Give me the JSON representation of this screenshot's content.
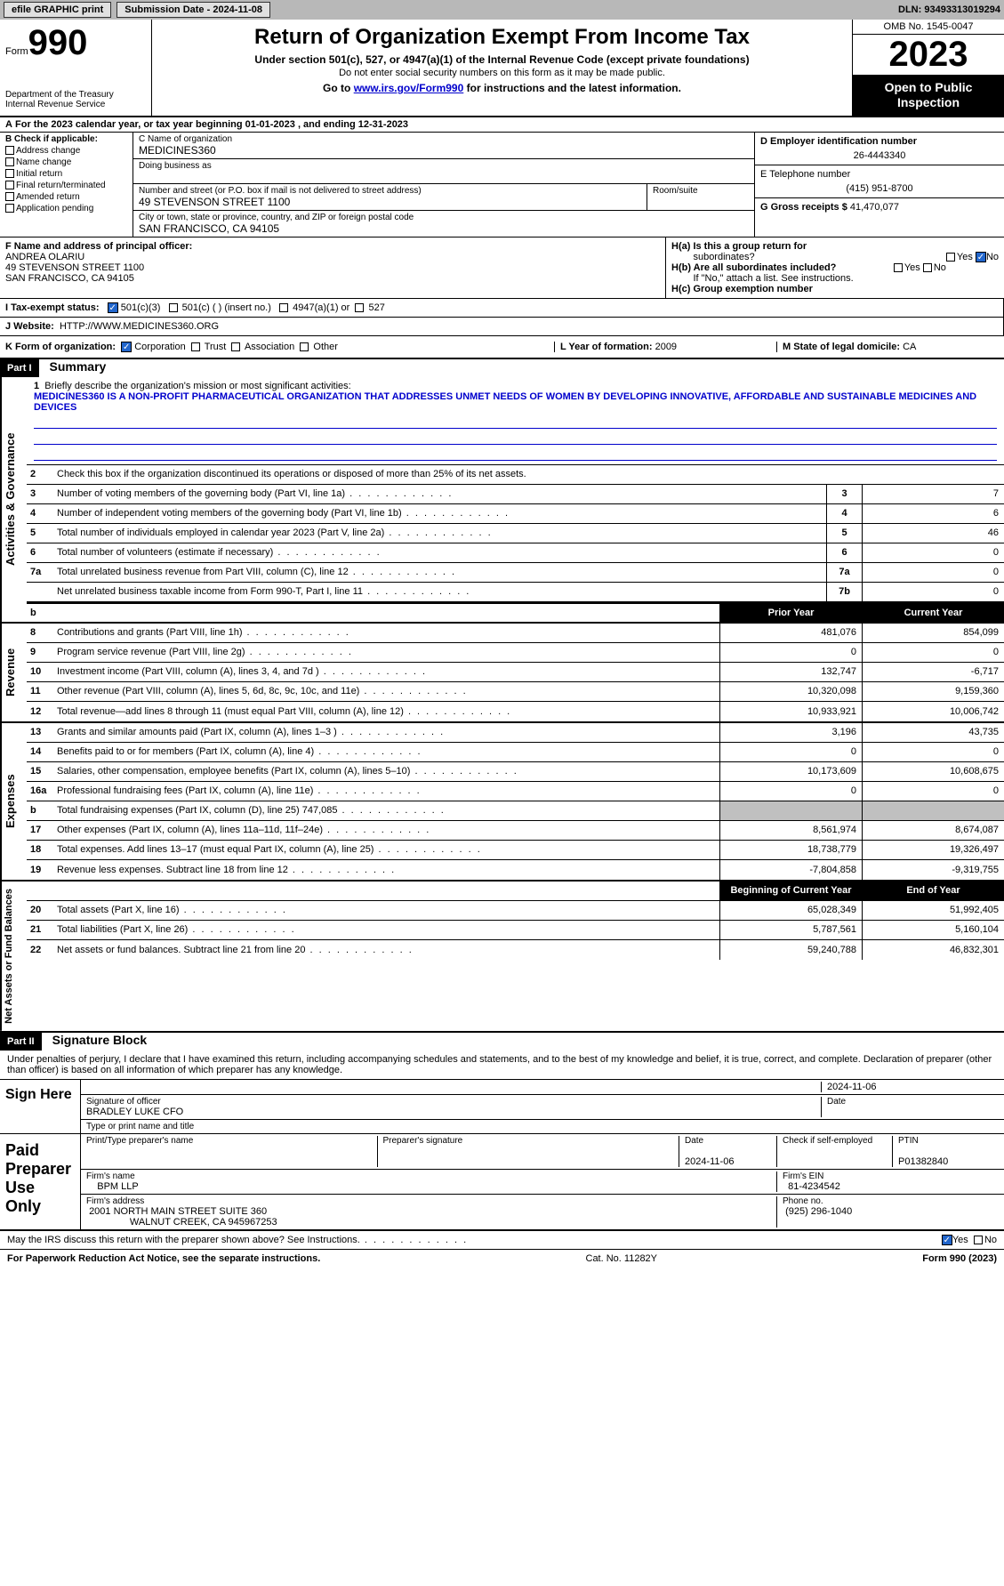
{
  "topbar": {
    "efile": "efile GRAPHIC print",
    "submission_label": "Submission Date",
    "submission_date": "2024-11-08",
    "dln_label": "DLN:",
    "dln": "93493313019294"
  },
  "header": {
    "form_word": "Form",
    "form_no": "990",
    "dept": "Department of the Treasury",
    "irs": "Internal Revenue Service",
    "title": "Return of Organization Exempt From Income Tax",
    "sub1": "Under section 501(c), 527, or 4947(a)(1) of the Internal Revenue Code (except private foundations)",
    "sub2": "Do not enter social security numbers on this form as it may be made public.",
    "sub3_pre": "Go to ",
    "sub3_link": "www.irs.gov/Form990",
    "sub3_post": " for instructions and the latest information.",
    "omb": "OMB No. 1545-0047",
    "year": "2023",
    "oti_line1": "Open to Public",
    "oti_line2": "Inspection"
  },
  "period": {
    "line_a": "A",
    "text": "For the 2023 calendar year, or tax year beginning 01-01-2023   , and ending 12-31-2023"
  },
  "box_b": {
    "hdr": "B Check if applicable:",
    "items": [
      "Address change",
      "Name change",
      "Initial return",
      "Final return/terminated",
      "Amended return",
      "Application pending"
    ]
  },
  "box_c": {
    "name_label": "C Name of organization",
    "name": "MEDICINES360",
    "dba_label": "Doing business as",
    "street_label": "Number and street (or P.O. box if mail is not delivered to street address)",
    "street": "49 STEVENSON STREET 1100",
    "room_label": "Room/suite",
    "city_label": "City or town, state or province, country, and ZIP or foreign postal code",
    "city": "SAN FRANCISCO, CA  94105"
  },
  "box_d": {
    "ein_label": "D Employer identification number",
    "ein": "26-4443340",
    "phone_label": "E Telephone number",
    "phone": "(415) 951-8700",
    "gross_label": "G Gross receipts $",
    "gross": "41,470,077"
  },
  "box_f": {
    "label": "F Name and address of principal officer:",
    "name": "ANDREA OLARIU",
    "street": "49 STEVENSON STREET 1100",
    "city": "SAN FRANCISCO, CA  94105"
  },
  "box_h": {
    "ha_label": "H(a)  Is this a group return for",
    "ha_sub": "subordinates?",
    "hb_label": "H(b)  Are all subordinates included?",
    "hb_note": "If \"No,\" attach a list. See instructions.",
    "hc_label": "H(c)  Group exemption number",
    "yes": "Yes",
    "no": "No"
  },
  "box_i": {
    "label": "I    Tax-exempt status:",
    "opt1": "501(c)(3)",
    "opt2": "501(c) (  ) (insert no.)",
    "opt3": "4947(a)(1) or",
    "opt4": "527"
  },
  "box_j": {
    "label": "J    Website:",
    "url": "HTTP://WWW.MEDICINES360.ORG"
  },
  "box_k": {
    "label": "K Form of organization:",
    "opts": [
      "Corporation",
      "Trust",
      "Association",
      "Other"
    ]
  },
  "box_l": {
    "label": "L Year of formation:",
    "val": "2009"
  },
  "box_m": {
    "label": "M State of legal domicile:",
    "val": "CA"
  },
  "part1": {
    "hdr": "Part I",
    "title": "Summary",
    "side_ag": "Activities & Governance",
    "side_rev": "Revenue",
    "side_exp": "Expenses",
    "side_na": "Net Assets or Fund Balances",
    "line1_label": "Briefly describe the organization's mission or most significant activities:",
    "line1_text": "MEDICINES360 IS A NON-PROFIT PHARMACEUTICAL ORGANIZATION THAT ADDRESSES UNMET NEEDS OF WOMEN BY DEVELOPING INNOVATIVE, AFFORDABLE AND SUSTAINABLE MEDICINES AND DEVICES",
    "line2": "Check this box      if the organization discontinued its operations or disposed of more than 25% of its net assets.",
    "rows_ag": [
      {
        "n": "3",
        "d": "Number of voting members of the governing body (Part VI, line 1a)",
        "b": "3",
        "v": "7"
      },
      {
        "n": "4",
        "d": "Number of independent voting members of the governing body (Part VI, line 1b)",
        "b": "4",
        "v": "6"
      },
      {
        "n": "5",
        "d": "Total number of individuals employed in calendar year 2023 (Part V, line 2a)",
        "b": "5",
        "v": "46"
      },
      {
        "n": "6",
        "d": "Total number of volunteers (estimate if necessary)",
        "b": "6",
        "v": "0"
      },
      {
        "n": "7a",
        "d": "Total unrelated business revenue from Part VIII, column (C), line 12",
        "b": "7a",
        "v": "0"
      },
      {
        "n": "",
        "d": "Net unrelated business taxable income from Form 990-T, Part I, line 11",
        "b": "7b",
        "v": "0"
      }
    ],
    "col_prior": "Prior Year",
    "col_current": "Current Year",
    "rows_rev": [
      {
        "n": "8",
        "d": "Contributions and grants (Part VIII, line 1h)",
        "p": "481,076",
        "c": "854,099"
      },
      {
        "n": "9",
        "d": "Program service revenue (Part VIII, line 2g)",
        "p": "0",
        "c": "0"
      },
      {
        "n": "10",
        "d": "Investment income (Part VIII, column (A), lines 3, 4, and 7d )",
        "p": "132,747",
        "c": "-6,717"
      },
      {
        "n": "11",
        "d": "Other revenue (Part VIII, column (A), lines 5, 6d, 8c, 9c, 10c, and 11e)",
        "p": "10,320,098",
        "c": "9,159,360"
      },
      {
        "n": "12",
        "d": "Total revenue—add lines 8 through 11 (must equal Part VIII, column (A), line 12)",
        "p": "10,933,921",
        "c": "10,006,742"
      }
    ],
    "rows_exp": [
      {
        "n": "13",
        "d": "Grants and similar amounts paid (Part IX, column (A), lines 1–3 )",
        "p": "3,196",
        "c": "43,735"
      },
      {
        "n": "14",
        "d": "Benefits paid to or for members (Part IX, column (A), line 4)",
        "p": "0",
        "c": "0"
      },
      {
        "n": "15",
        "d": "Salaries, other compensation, employee benefits (Part IX, column (A), lines 5–10)",
        "p": "10,173,609",
        "c": "10,608,675"
      },
      {
        "n": "16a",
        "d": "Professional fundraising fees (Part IX, column (A), line 11e)",
        "p": "0",
        "c": "0"
      },
      {
        "n": "b",
        "d": "Total fundraising expenses (Part IX, column (D), line 25) 747,085",
        "p": "SHADED",
        "c": "SHADED"
      },
      {
        "n": "17",
        "d": "Other expenses (Part IX, column (A), lines 11a–11d, 11f–24e)",
        "p": "8,561,974",
        "c": "8,674,087"
      },
      {
        "n": "18",
        "d": "Total expenses. Add lines 13–17 (must equal Part IX, column (A), line 25)",
        "p": "18,738,779",
        "c": "19,326,497"
      },
      {
        "n": "19",
        "d": "Revenue less expenses. Subtract line 18 from line 12",
        "p": "-7,804,858",
        "c": "-9,319,755"
      }
    ],
    "col_begin": "Beginning of Current Year",
    "col_end": "End of Year",
    "rows_na": [
      {
        "n": "20",
        "d": "Total assets (Part X, line 16)",
        "p": "65,028,349",
        "c": "51,992,405"
      },
      {
        "n": "21",
        "d": "Total liabilities (Part X, line 26)",
        "p": "5,787,561",
        "c": "5,160,104"
      },
      {
        "n": "22",
        "d": "Net assets or fund balances. Subtract line 21 from line 20",
        "p": "59,240,788",
        "c": "46,832,301"
      }
    ]
  },
  "part2": {
    "hdr": "Part II",
    "title": "Signature Block",
    "penalties": "Under penalties of perjury, I declare that I have examined this return, including accompanying schedules and statements, and to the best of my knowledge and belief, it is true, correct, and complete. Declaration of preparer (other than officer) is based on all information of which preparer has any knowledge.",
    "sign_here": "Sign Here",
    "sig_officer": "Signature of officer",
    "officer_name": "BRADLEY LUKE  CFO",
    "type_name": "Type or print name and title",
    "sig_date": "2024-11-06",
    "date_lbl": "Date",
    "paid": "Paid Preparer Use Only",
    "prep_name_lbl": "Print/Type preparer's name",
    "prep_sig_lbl": "Preparer's signature",
    "prep_date": "2024-11-06",
    "check_if": "Check       if self-employed",
    "ptin_lbl": "PTIN",
    "ptin": "P01382840",
    "firm_name_lbl": "Firm's name",
    "firm_name": "BPM LLP",
    "firm_ein_lbl": "Firm's EIN",
    "firm_ein": "81-4234542",
    "firm_addr_lbl": "Firm's address",
    "firm_addr1": "2001 NORTH MAIN STREET SUITE 360",
    "firm_addr2": "WALNUT CREEK, CA  945967253",
    "phone_lbl": "Phone no.",
    "phone": "(925) 296-1040",
    "discuss": "May the IRS discuss this return with the preparer shown above? See Instructions."
  },
  "footer": {
    "pra": "For Paperwork Reduction Act Notice, see the separate instructions.",
    "cat": "Cat. No. 11282Y",
    "form": "Form 990 (2023)"
  }
}
